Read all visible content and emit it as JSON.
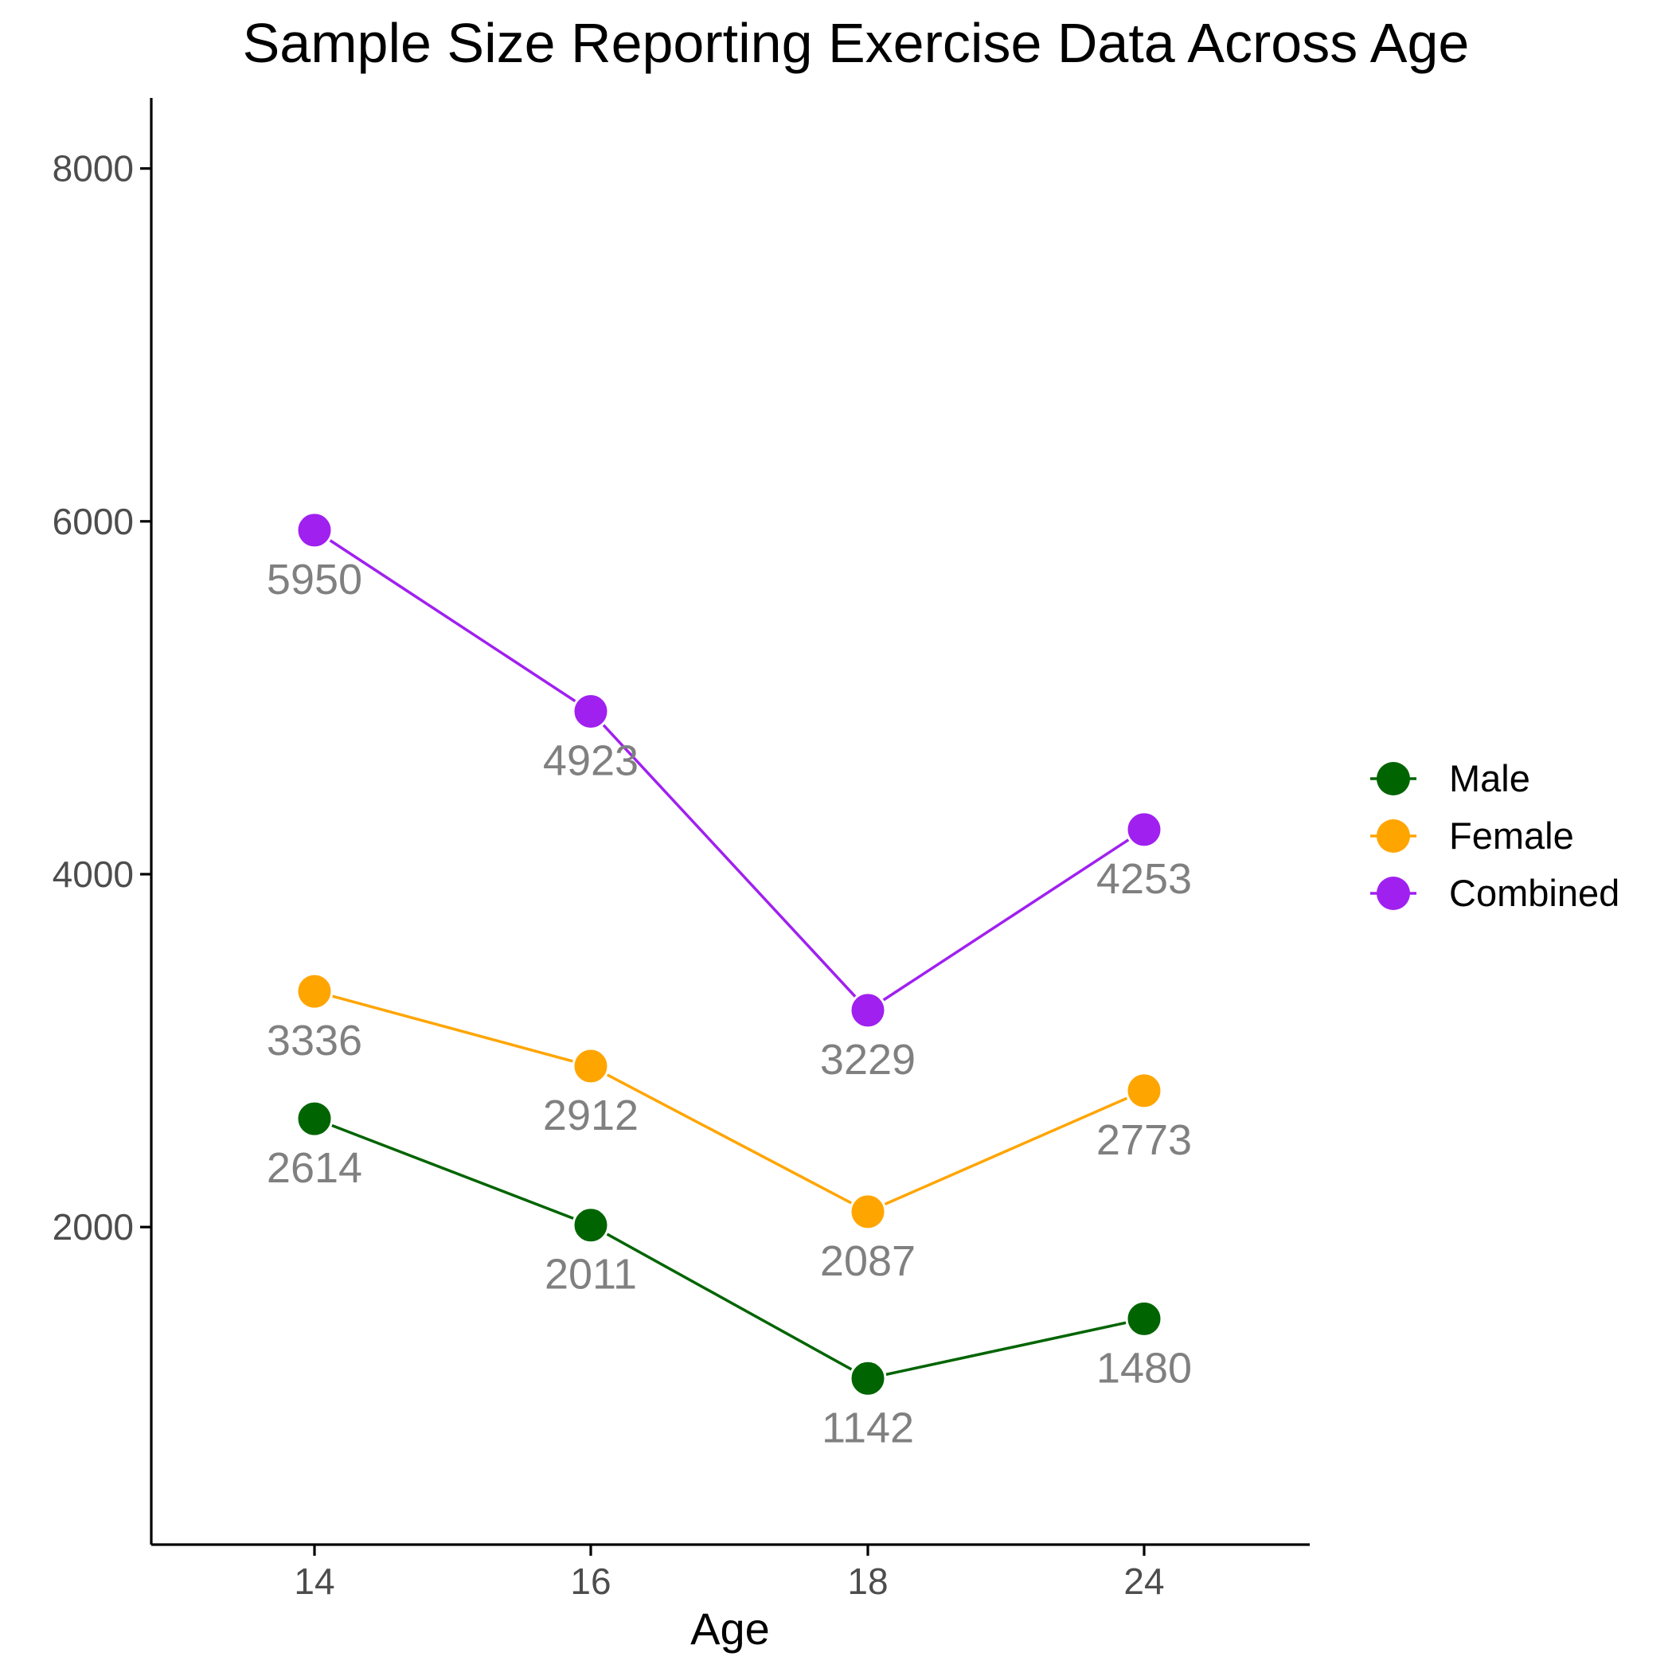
{
  "chart_data": {
    "type": "line",
    "title": "Sample Size Reporting Exercise Data Across Age",
    "xlabel": "Age",
    "ylabel": "",
    "categories": [
      "14",
      "16",
      "18",
      "24"
    ],
    "ylim": [
      200,
      8400
    ],
    "yticks": [
      2000,
      4000,
      6000,
      8000
    ],
    "grid": false,
    "legend_position": "right",
    "series": [
      {
        "name": "Male",
        "color": "#006400",
        "values": [
          2614,
          2011,
          1142,
          1480
        ]
      },
      {
        "name": "Female",
        "color": "#FFA500",
        "values": [
          3336,
          2912,
          2087,
          2773
        ]
      },
      {
        "name": "Combined",
        "color": "#A020F0",
        "values": [
          5950,
          4923,
          3229,
          4253
        ]
      }
    ]
  }
}
